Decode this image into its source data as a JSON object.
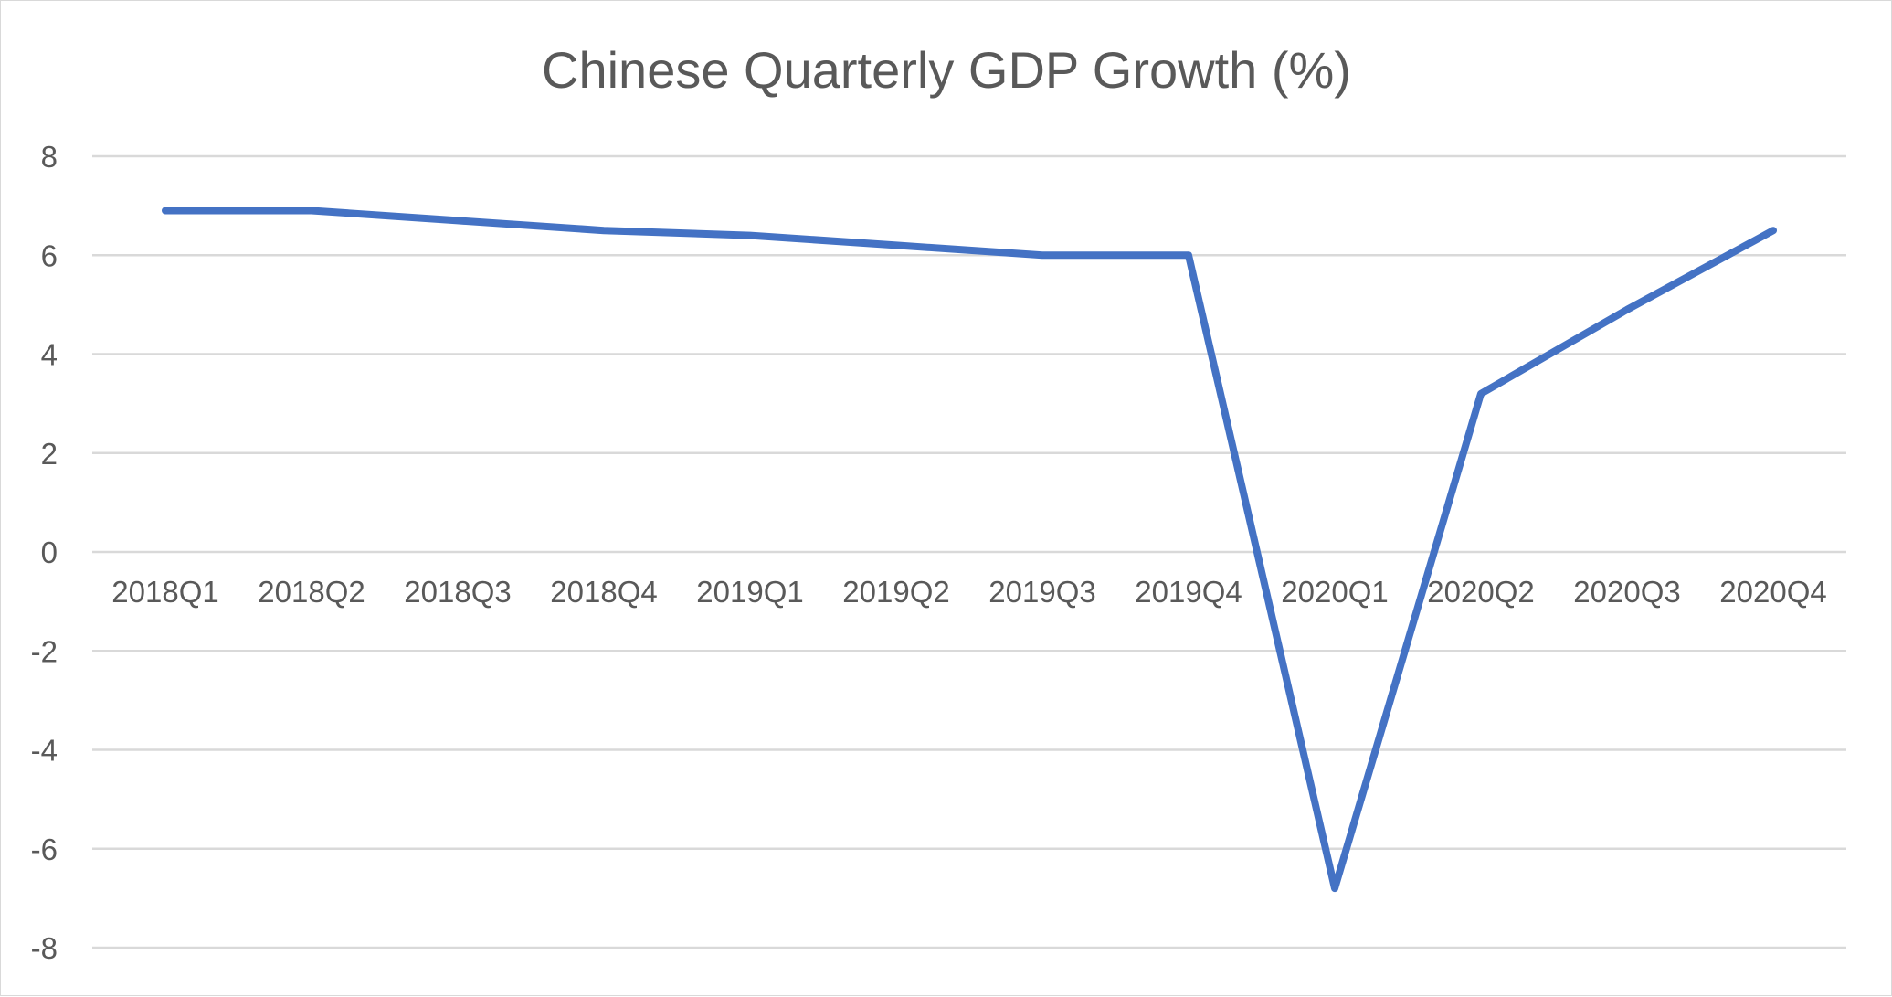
{
  "chart_data": {
    "type": "line",
    "title": "Chinese Quarterly GDP Growth (%)",
    "xlabel": "",
    "ylabel": "",
    "categories": [
      "2018Q1",
      "2018Q2",
      "2018Q3",
      "2018Q4",
      "2019Q1",
      "2019Q2",
      "2019Q3",
      "2019Q4",
      "2020Q1",
      "2020Q2",
      "2020Q3",
      "2020Q4"
    ],
    "series": [
      {
        "values": [
          6.9,
          6.9,
          6.7,
          6.5,
          6.4,
          6.2,
          6.0,
          6.0,
          -6.8,
          3.2,
          4.9,
          6.5
        ],
        "color": "#4472c4"
      }
    ],
    "ylim": [
      -8,
      8
    ],
    "yticks": [
      8,
      6,
      4,
      2,
      0,
      -2,
      -4,
      -6,
      -8
    ],
    "grid": true,
    "legend": "none"
  }
}
